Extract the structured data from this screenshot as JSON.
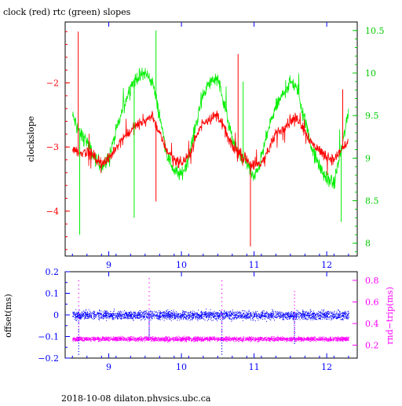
{
  "page": {
    "title": "clock (red) rtc (green) slopes",
    "footer": "2018-10-08  dilaton.physics.ubc.ca"
  },
  "colors": {
    "clock": "#ff0000",
    "rtc": "#00ee00",
    "offset": "#0000ff",
    "roundtrip": "#ff00ff",
    "frame": "#000000"
  },
  "chart_data": [
    {
      "type": "line",
      "title": "clock (red) rtc (green) slopes",
      "ylabel": "clockslope",
      "ylabel_right": "",
      "xlim": [
        8.4,
        12.42
      ],
      "ylim": [
        -4.7,
        -1.05
      ],
      "ylim_right": [
        7.85,
        10.6
      ],
      "x_ticks": [
        9,
        10,
        11,
        12
      ],
      "x_tick_labels": [
        "9",
        "10",
        "11",
        "12"
      ],
      "y_ticks": [
        -2,
        -3,
        -4
      ],
      "y_tick_labels": [
        "−2",
        "−3",
        "−4"
      ],
      "y_right_ticks": [
        10.5,
        10,
        9.5,
        9,
        8.5,
        8
      ],
      "y_right_tick_labels": [
        "10.5",
        "10",
        "9.5",
        "9",
        "8.5",
        "8"
      ],
      "series": [
        {
          "name": "clock",
          "axis": "left",
          "color": "#ff0000",
          "x": [
            8.5,
            8.6,
            8.7,
            8.8,
            8.9,
            9.0,
            9.1,
            9.2,
            9.3,
            9.4,
            9.5,
            9.6,
            9.7,
            9.8,
            9.9,
            10.0,
            10.1,
            10.2,
            10.3,
            10.4,
            10.5,
            10.6,
            10.7,
            10.8,
            10.9,
            11.0,
            11.1,
            11.2,
            11.3,
            11.4,
            11.5,
            11.6,
            11.7,
            11.8,
            11.9,
            12.0,
            12.1,
            12.2,
            12.3
          ],
          "y": [
            -3.0,
            -3.1,
            -3.05,
            -3.15,
            -3.25,
            -3.2,
            -3.0,
            -2.85,
            -2.75,
            -2.65,
            -2.6,
            -2.5,
            -2.8,
            -3.05,
            -3.2,
            -3.25,
            -3.15,
            -2.85,
            -2.6,
            -2.55,
            -2.5,
            -2.75,
            -3.0,
            -3.1,
            -3.2,
            -3.3,
            -3.25,
            -3.05,
            -2.8,
            -2.7,
            -2.6,
            -2.55,
            -2.75,
            -2.95,
            -3.05,
            -3.15,
            -3.2,
            -3.05,
            -2.9
          ]
        },
        {
          "name": "rtc",
          "axis": "right",
          "color": "#00ee00",
          "x": [
            8.5,
            8.6,
            8.7,
            8.8,
            8.9,
            9.0,
            9.1,
            9.2,
            9.3,
            9.4,
            9.5,
            9.6,
            9.7,
            9.8,
            9.9,
            10.0,
            10.1,
            10.2,
            10.3,
            10.4,
            10.5,
            10.6,
            10.7,
            10.8,
            10.9,
            11.0,
            11.1,
            11.2,
            11.3,
            11.4,
            11.5,
            11.6,
            11.7,
            11.8,
            11.9,
            12.0,
            12.1,
            12.2,
            12.3
          ],
          "y": [
            9.5,
            9.3,
            9.2,
            9.0,
            8.9,
            9.0,
            9.3,
            9.6,
            9.85,
            9.95,
            10.0,
            9.9,
            9.5,
            9.05,
            8.85,
            8.8,
            9.0,
            9.4,
            9.75,
            9.9,
            9.95,
            9.6,
            9.2,
            9.05,
            8.95,
            8.75,
            9.0,
            9.35,
            9.6,
            9.75,
            9.9,
            9.8,
            9.45,
            9.1,
            8.9,
            8.75,
            8.7,
            9.1,
            9.55
          ]
        }
      ],
      "spikes": [
        {
          "series": "clock",
          "x": [
            8.58,
            9.65,
            10.78,
            10.95,
            12.22
          ],
          "y": [
            -1.2,
            -3.85,
            -1.55,
            -4.55,
            -2.1
          ]
        },
        {
          "series": "rtc",
          "x": [
            8.6,
            9.35,
            9.65,
            10.85,
            12.2
          ],
          "y": [
            8.1,
            8.3,
            10.5,
            9.9,
            8.25
          ]
        }
      ]
    },
    {
      "type": "scatter",
      "ylabel": "offset(ms)",
      "ylabel_right": "rnd−trip(ms)",
      "xlim": [
        8.4,
        12.42
      ],
      "ylim": [
        -0.2,
        0.2
      ],
      "ylim_right": [
        0.08,
        0.88
      ],
      "x_ticks": [
        9,
        10,
        11,
        12
      ],
      "x_tick_labels": [
        "9",
        "10",
        "11",
        "12"
      ],
      "y_ticks": [
        0.2,
        0.1,
        0,
        -0.1,
        -0.2
      ],
      "y_tick_labels": [
        "0.2",
        "0.1",
        "0",
        "−0.1",
        "−0.2"
      ],
      "y_right_ticks": [
        0.8,
        0.6,
        0.4,
        0.2
      ],
      "y_right_tick_labels": [
        "0.8",
        "0.6",
        "0.4",
        "0.2"
      ],
      "series": [
        {
          "name": "offset",
          "axis": "left",
          "color": "#0000ff",
          "x_range": [
            8.5,
            12.3
          ],
          "center": 0.0,
          "spread": 0.03
        },
        {
          "name": "rnd-trip",
          "axis": "right",
          "color": "#ff00ff",
          "x_range": [
            8.5,
            12.3
          ],
          "center": 0.26,
          "spread": 0.03
        }
      ],
      "outliers": [
        {
          "series": "offset",
          "x": [
            8.58,
            9.55,
            10.55,
            11.55
          ],
          "y": [
            -0.18,
            -0.1,
            -0.18,
            -0.13
          ]
        },
        {
          "series": "rnd-trip",
          "x": [
            8.58,
            9.55,
            10.55,
            11.55
          ],
          "y": [
            0.8,
            0.82,
            0.8,
            0.7
          ]
        }
      ]
    }
  ]
}
